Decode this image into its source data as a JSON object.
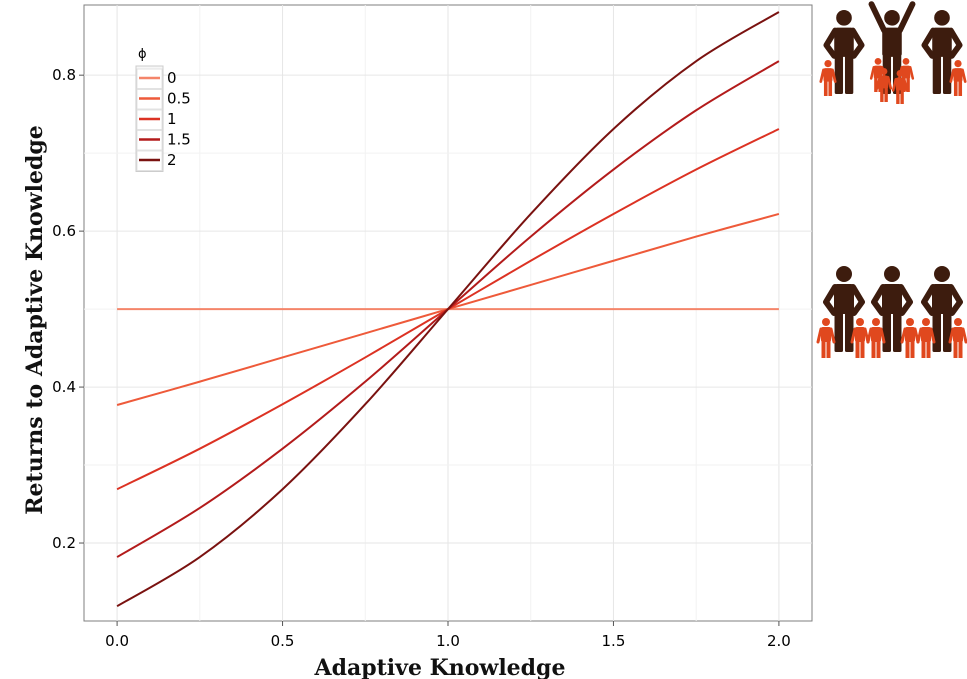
{
  "chart_data": {
    "type": "line",
    "xlabel": "Adaptive Knowledge",
    "ylabel": "Returns to Adaptive Knowledge",
    "xlim": [
      -0.1,
      2.1
    ],
    "ylim": [
      0.1,
      0.89
    ],
    "xticks": [
      "0.0",
      "0.5",
      "1.0",
      "1.5",
      "2.0"
    ],
    "yticks": [
      "0.2",
      "0.4",
      "0.6",
      "0.8"
    ],
    "grid": true,
    "legend": {
      "title": "ϕ",
      "position": "top-left"
    },
    "series": [
      {
        "name": "0",
        "color": "#f4856a",
        "x": [
          0,
          0.25,
          0.5,
          0.75,
          1.0,
          1.25,
          1.5,
          1.75,
          2.0
        ],
        "y": [
          0.5,
          0.5,
          0.5,
          0.5,
          0.5,
          0.5,
          0.5,
          0.5,
          0.5
        ]
      },
      {
        "name": "0.5",
        "color": "#ee5a3a",
        "x": [
          0,
          0.25,
          0.5,
          0.75,
          1.0,
          1.25,
          1.5,
          1.75,
          2.0
        ],
        "y": [
          0.377,
          0.407,
          0.438,
          0.469,
          0.5,
          0.531,
          0.562,
          0.593,
          0.622
        ]
      },
      {
        "name": "1",
        "color": "#dc3223",
        "x": [
          0,
          0.25,
          0.5,
          0.75,
          1.0,
          1.25,
          1.5,
          1.75,
          2.0
        ],
        "y": [
          0.269,
          0.321,
          0.378,
          0.438,
          0.5,
          0.562,
          0.622,
          0.679,
          0.731
        ]
      },
      {
        "name": "1.5",
        "color": "#b31b1b",
        "x": [
          0,
          0.25,
          0.5,
          0.75,
          1.0,
          1.25,
          1.5,
          1.75,
          2.0
        ],
        "y": [
          0.182,
          0.245,
          0.321,
          0.407,
          0.5,
          0.593,
          0.679,
          0.755,
          0.818
        ]
      },
      {
        "name": "2",
        "color": "#7a1210",
        "x": [
          0,
          0.25,
          0.5,
          0.75,
          1.0,
          1.25,
          1.5,
          1.75,
          2.0
        ],
        "y": [
          0.119,
          0.182,
          0.269,
          0.378,
          0.5,
          0.622,
          0.731,
          0.818,
          0.881
        ]
      }
    ]
  },
  "illustrations": {
    "adult_color": "#3d1c0e",
    "child_color": "#e0481e",
    "top_group": {
      "adults": 3,
      "raised_arms": "middle",
      "children_per_adult": [
        1,
        4,
        1
      ]
    },
    "bottom_group": {
      "adults": 3,
      "children_per_adult": [
        2,
        2,
        2
      ]
    }
  }
}
